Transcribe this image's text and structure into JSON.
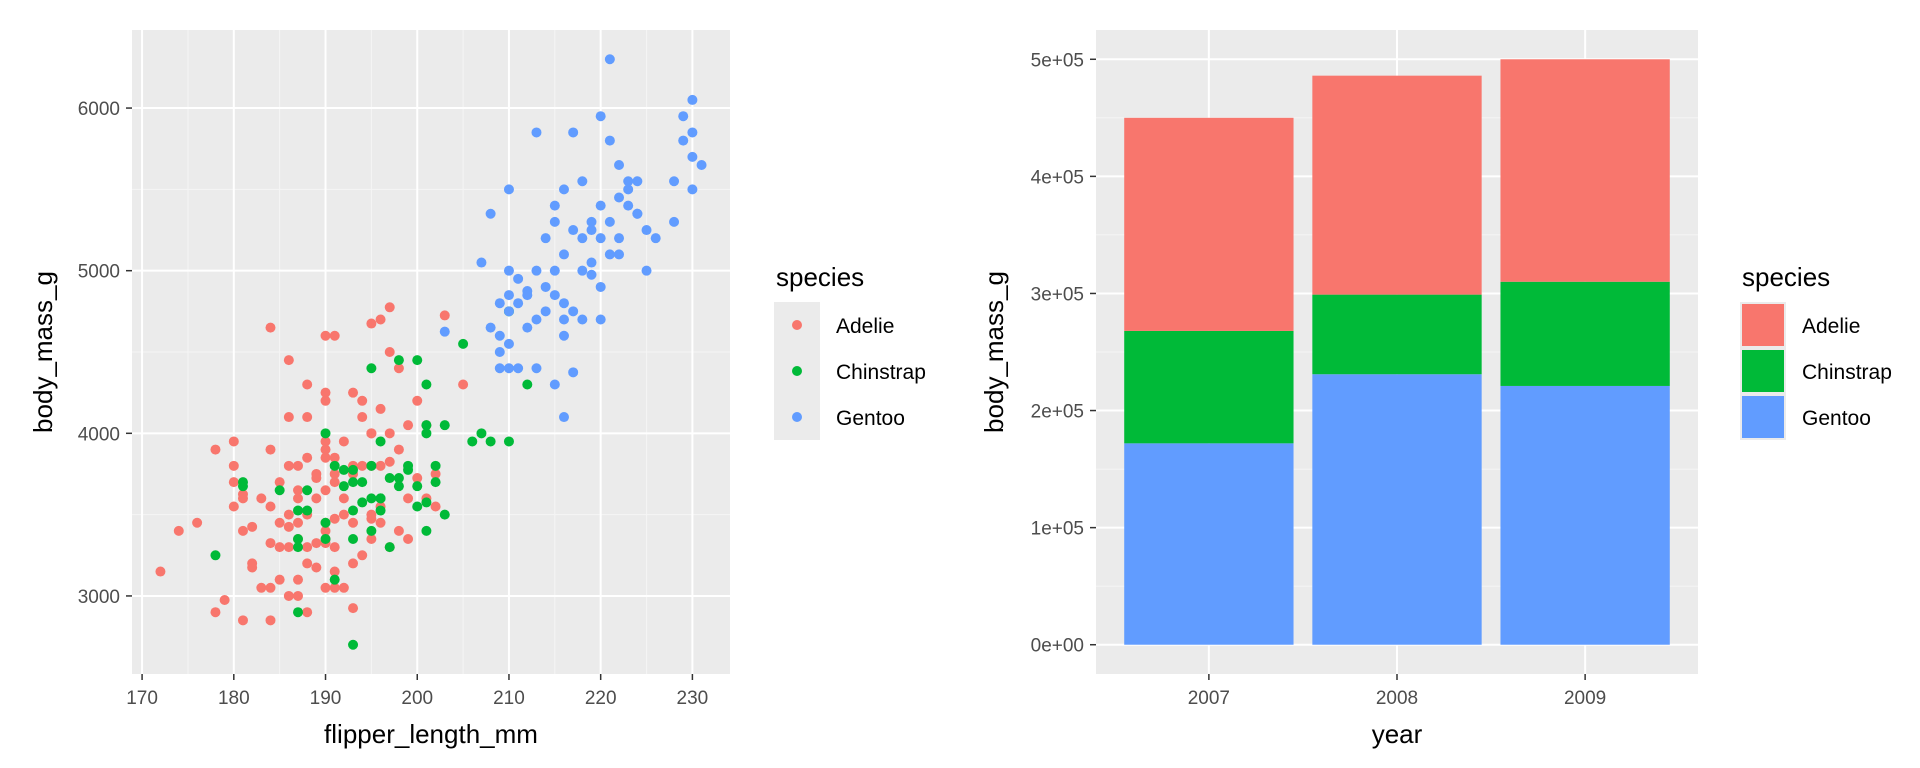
{
  "colors": {
    "panel": "#ebebeb",
    "grid_major": "#ffffff",
    "grid_minor": "#f5f5f5",
    "Adelie": "#f8766d",
    "Chinstrap": "#00ba38",
    "Gentoo": "#619cff"
  },
  "chart_data": [
    {
      "type": "scatter",
      "xlabel": "flipper_length_mm",
      "ylabel": "body_mass_g",
      "xlim": [
        168.9,
        234.1
      ],
      "ylim": [
        2520,
        6480
      ],
      "xticks": [
        170,
        180,
        190,
        200,
        210,
        220,
        230
      ],
      "xtick_labels": [
        "170",
        "180",
        "190",
        "200",
        "210",
        "220",
        "230"
      ],
      "yticks": [
        3000,
        4000,
        5000,
        6000
      ],
      "ytick_labels": [
        "3000",
        "4000",
        "5000",
        "6000"
      ],
      "legend": {
        "title": "species",
        "position": "right",
        "entries": [
          "Adelie",
          "Chinstrap",
          "Gentoo"
        ]
      },
      "series": [
        {
          "name": "Adelie",
          "points": [
            [
              172,
              3150
            ],
            [
              174,
              3400
            ],
            [
              176,
              3450
            ],
            [
              178,
              3900
            ],
            [
              178,
              2900
            ],
            [
              179,
              2975
            ],
            [
              180,
              3700
            ],
            [
              180,
              3550
            ],
            [
              180,
              3950
            ],
            [
              180,
              3800
            ],
            [
              181,
              3625
            ],
            [
              181,
              2850
            ],
            [
              181,
              3400
            ],
            [
              182,
              3175
            ],
            [
              182,
              3200
            ],
            [
              182,
              3425
            ],
            [
              183,
              3050
            ],
            [
              184,
              3550
            ],
            [
              184,
              3325
            ],
            [
              184,
              3900
            ],
            [
              184,
              2850
            ],
            [
              184,
              4650
            ],
            [
              185,
              3700
            ],
            [
              185,
              3100
            ],
            [
              185,
              3450
            ],
            [
              186,
              3800
            ],
            [
              186,
              3300
            ],
            [
              186,
              3500
            ],
            [
              186,
              4450
            ],
            [
              186,
              3000
            ],
            [
              187,
              3350
            ],
            [
              187,
              3800
            ],
            [
              187,
              3000
            ],
            [
              187,
              3600
            ],
            [
              187,
              3100
            ],
            [
              188,
              3500
            ],
            [
              188,
              3300
            ],
            [
              188,
              4100
            ],
            [
              188,
              2900
            ],
            [
              188,
              4300
            ],
            [
              188,
              3850
            ],
            [
              189,
              3175
            ],
            [
              189,
              3600
            ],
            [
              189,
              3725
            ],
            [
              190,
              3950
            ],
            [
              190,
              3325
            ],
            [
              190,
              3650
            ],
            [
              190,
              3450
            ],
            [
              190,
              3900
            ],
            [
              190,
              4250
            ],
            [
              190,
              3050
            ],
            [
              190,
              4600
            ],
            [
              190,
              3400
            ],
            [
              190,
              3850
            ],
            [
              191,
              3700
            ],
            [
              191,
              3150
            ],
            [
              191,
              3475
            ],
            [
              191,
              4600
            ],
            [
              191,
              3050
            ],
            [
              191,
              3750
            ],
            [
              192,
              3050
            ],
            [
              192,
              3500
            ],
            [
              192,
              3950
            ],
            [
              193,
              2925
            ],
            [
              193,
              3800
            ],
            [
              193,
              4250
            ],
            [
              193,
              3450
            ],
            [
              193,
              3200
            ],
            [
              194,
              4200
            ],
            [
              194,
              3250
            ],
            [
              195,
              3475
            ],
            [
              195,
              4675
            ],
            [
              195,
              3500
            ],
            [
              195,
              4000
            ],
            [
              195,
              3800
            ],
            [
              195,
              4000
            ],
            [
              196,
              3800
            ],
            [
              196,
              4700
            ],
            [
              196,
              4150
            ],
            [
              196,
              3550
            ],
            [
              197,
              3300
            ],
            [
              197,
              4000
            ],
            [
              197,
              4500
            ],
            [
              197,
              4775
            ],
            [
              198,
              3400
            ],
            [
              198,
              4400
            ],
            [
              199,
              4050
            ],
            [
              199,
              3600
            ],
            [
              200,
              3725
            ],
            [
              201,
              3600
            ],
            [
              201,
              4050
            ],
            [
              202,
              3750
            ],
            [
              202,
              3550
            ],
            [
              203,
              4725
            ],
            [
              205,
              4300
            ],
            [
              186,
              3425
            ],
            [
              188,
              3200
            ],
            [
              189,
              3750
            ],
            [
              190,
              4200
            ],
            [
              185,
              3300
            ],
            [
              187,
              3450
            ],
            [
              191,
              3850
            ],
            [
              193,
              3750
            ],
            [
              195,
              3350
            ],
            [
              184,
              3050
            ],
            [
              186,
              4100
            ],
            [
              190,
              3350
            ],
            [
              194,
              3800
            ],
            [
              196,
              3450
            ],
            [
              198,
              3900
            ],
            [
              183,
              3600
            ],
            [
              189,
              3325
            ],
            [
              192,
              3600
            ],
            [
              194,
              4100
            ],
            [
              197,
              3825
            ],
            [
              181,
              3600
            ],
            [
              187,
              3650
            ],
            [
              191,
              3300
            ],
            [
              199,
              3350
            ],
            [
              200,
              4200
            ]
          ]
        },
        {
          "name": "Chinstrap",
          "points": [
            [
              178,
              3250
            ],
            [
              181,
              3700
            ],
            [
              181,
              3675
            ],
            [
              185,
              3650
            ],
            [
              187,
              3525
            ],
            [
              187,
              3300
            ],
            [
              187,
              3350
            ],
            [
              187,
              2900
            ],
            [
              188,
              3525
            ],
            [
              190,
              3350
            ],
            [
              190,
              3450
            ],
            [
              191,
              3800
            ],
            [
              191,
              3100
            ],
            [
              192,
              3775
            ],
            [
              193,
              2700
            ],
            [
              193,
              3775
            ],
            [
              193,
              3700
            ],
            [
              193,
              3350
            ],
            [
              194,
              3575
            ],
            [
              195,
              3800
            ],
            [
              195,
              3600
            ],
            [
              195,
              4400
            ],
            [
              195,
              3400
            ],
            [
              196,
              3525
            ],
            [
              196,
              3600
            ],
            [
              196,
              3950
            ],
            [
              197,
              3725
            ],
            [
              197,
              3300
            ],
            [
              198,
              3725
            ],
            [
              198,
              3675
            ],
            [
              199,
              3775
            ],
            [
              199,
              3800
            ],
            [
              200,
              3550
            ],
            [
              200,
              3675
            ],
            [
              201,
              4300
            ],
            [
              201,
              3575
            ],
            [
              201,
              4050
            ],
            [
              201,
              3400
            ],
            [
              202,
              3700
            ],
            [
              202,
              3800
            ],
            [
              203,
              3500
            ],
            [
              205,
              4550
            ],
            [
              206,
              3950
            ],
            [
              207,
              4000
            ],
            [
              208,
              3950
            ],
            [
              210,
              3950
            ],
            [
              210,
              4750
            ],
            [
              212,
              4300
            ],
            [
              188,
              3650
            ],
            [
              190,
              4000
            ],
            [
              192,
              3675
            ],
            [
              193,
              3525
            ],
            [
              194,
              3700
            ],
            [
              196,
              3600
            ],
            [
              198,
              4450
            ],
            [
              200,
              4450
            ],
            [
              201,
              4000
            ],
            [
              203,
              4050
            ]
          ]
        },
        {
          "name": "Gentoo",
          "points": [
            [
              203,
              4625
            ],
            [
              207,
              5050
            ],
            [
              208,
              4650
            ],
            [
              208,
              5350
            ],
            [
              209,
              4400
            ],
            [
              209,
              4500
            ],
            [
              209,
              4800
            ],
            [
              210,
              4750
            ],
            [
              210,
              4550
            ],
            [
              210,
              4850
            ],
            [
              210,
              4400
            ],
            [
              211,
              4400
            ],
            [
              211,
              4800
            ],
            [
              212,
              4875
            ],
            [
              212,
              4650
            ],
            [
              213,
              4700
            ],
            [
              213,
              4400
            ],
            [
              213,
              5850
            ],
            [
              214,
              4750
            ],
            [
              214,
              5200
            ],
            [
              215,
              4850
            ],
            [
              215,
              5000
            ],
            [
              215,
              5400
            ],
            [
              216,
              4100
            ],
            [
              216,
              4600
            ],
            [
              216,
              4700
            ],
            [
              216,
              5100
            ],
            [
              216,
              5500
            ],
            [
              217,
              4375
            ],
            [
              217,
              4750
            ],
            [
              217,
              5850
            ],
            [
              218,
              4700
            ],
            [
              218,
              5000
            ],
            [
              218,
              5200
            ],
            [
              219,
              4975
            ],
            [
              219,
              5300
            ],
            [
              219,
              5250
            ],
            [
              220,
              5200
            ],
            [
              220,
              4700
            ],
            [
              220,
              5950
            ],
            [
              220,
              5400
            ],
            [
              221,
              5100
            ],
            [
              221,
              6300
            ],
            [
              221,
              5300
            ],
            [
              222,
              5100
            ],
            [
              222,
              5450
            ],
            [
              222,
              5650
            ],
            [
              223,
              5500
            ],
            [
              223,
              5550
            ],
            [
              224,
              5350
            ],
            [
              224,
              5550
            ],
            [
              225,
              5000
            ],
            [
              225,
              5250
            ],
            [
              226,
              5200
            ],
            [
              228,
              5550
            ],
            [
              228,
              5300
            ],
            [
              229,
              5950
            ],
            [
              229,
              5800
            ],
            [
              230,
              5700
            ],
            [
              230,
              6050
            ],
            [
              230,
              5500
            ],
            [
              230,
              5850
            ],
            [
              231,
              5650
            ],
            [
              209,
              4600
            ],
            [
              210,
              5000
            ],
            [
              212,
              4850
            ],
            [
              214,
              4900
            ],
            [
              215,
              4300
            ],
            [
              216,
              4800
            ],
            [
              218,
              5550
            ],
            [
              219,
              5050
            ],
            [
              222,
              5200
            ],
            [
              210,
              5500
            ],
            [
              211,
              4950
            ],
            [
              213,
              5000
            ],
            [
              215,
              5300
            ],
            [
              217,
              5250
            ],
            [
              220,
              4900
            ],
            [
              221,
              5800
            ],
            [
              223,
              5400
            ],
            [
              224,
              5350
            ]
          ]
        }
      ]
    },
    {
      "type": "bar",
      "stacked": true,
      "xlabel": "year",
      "ylabel": "body_mass_g",
      "categories": [
        "2007",
        "2008",
        "2009"
      ],
      "ylim": [
        -25000,
        525000
      ],
      "yticks": [
        0,
        100000,
        200000,
        300000,
        400000,
        500000
      ],
      "ytick_labels": [
        "0e+00",
        "1e+05",
        "2e+05",
        "3e+05",
        "4e+05",
        "5e+05"
      ],
      "legend": {
        "title": "species",
        "position": "right",
        "entries": [
          "Adelie",
          "Chinstrap",
          "Gentoo"
        ]
      },
      "series": [
        {
          "name": "Gentoo",
          "values": [
            172000,
            231000,
            221000
          ]
        },
        {
          "name": "Chinstrap",
          "values": [
            96000,
            68000,
            89000
          ]
        },
        {
          "name": "Adelie",
          "values": [
            182000,
            187000,
            190000
          ]
        }
      ]
    }
  ]
}
